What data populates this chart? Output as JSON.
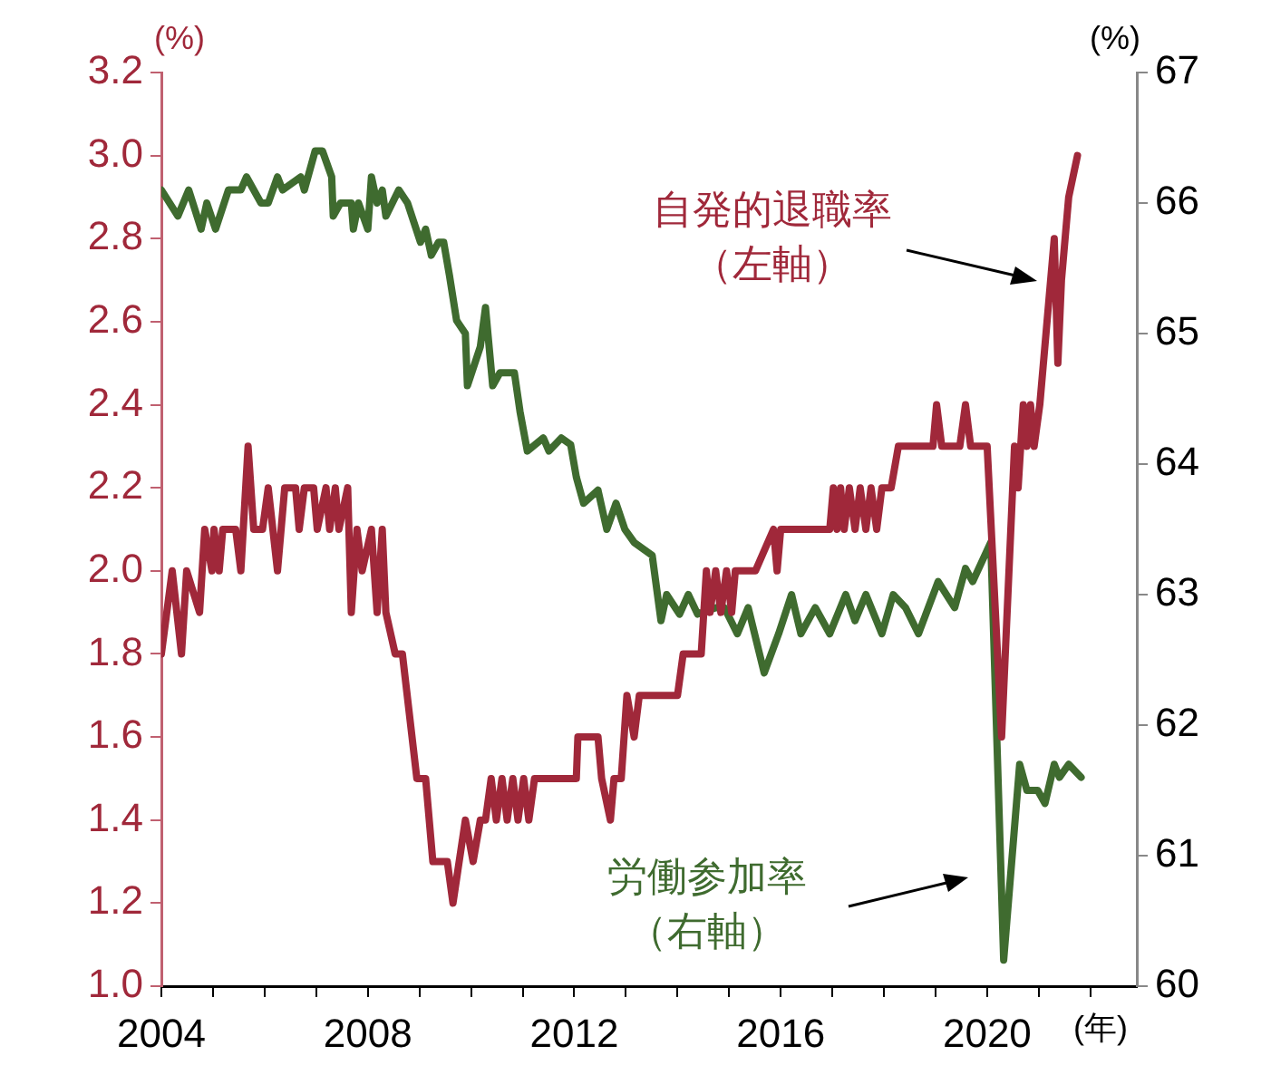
{
  "chart_data": {
    "type": "line",
    "xlabel": "(年)",
    "ylabel": "(%)",
    "y2label": "(%)",
    "xlim": [
      2004,
      2022.9
    ],
    "xticks": [
      2004,
      {
        "value": 2005,
        "label": null
      },
      {
        "value": 2006,
        "label": null
      },
      {
        "value": 2007,
        "label": null
      },
      2008,
      {
        "value": 2009,
        "label": null
      },
      {
        "value": 2010,
        "label": null
      },
      {
        "value": 2011,
        "label": null
      },
      2012,
      {
        "value": 2013,
        "label": null
      },
      {
        "value": 2014,
        "label": null
      },
      {
        "value": 2015,
        "label": null
      },
      2016,
      {
        "value": 2017,
        "label": null
      },
      {
        "value": 2018,
        "label": null
      },
      {
        "value": 2019,
        "label": null
      },
      2020,
      {
        "value": 2021,
        "label": null
      },
      {
        "value": 2022,
        "label": null
      }
    ],
    "ylim": [
      1.0,
      3.2
    ],
    "yticks": [
      {
        "value": 1,
        "label": "1.0"
      },
      1.2,
      1.4,
      1.6,
      1.8,
      {
        "value": 2,
        "label": "2.0"
      },
      2.2,
      2.4,
      2.6,
      2.8,
      {
        "value": 3,
        "label": "3.0"
      },
      3.2
    ],
    "y2lim": [
      60,
      67
    ],
    "y2ticks": [
      60,
      61,
      62,
      63,
      64,
      65,
      66,
      67
    ],
    "grid": false,
    "legend": false,
    "marker": "none",
    "line_style": "solid",
    "series": [
      {
        "name": "自発的退職率（左軸）",
        "color": "#a0283a",
        "axis": "y",
        "x": [
          2004.0,
          2004.21,
          2004.39,
          2004.49,
          2004.74,
          2004.84,
          2004.98,
          2005.02,
          2005.12,
          2005.19,
          2005.44,
          2005.54,
          2005.68,
          2005.79,
          2005.96,
          2006.07,
          2006.25,
          2006.39,
          2006.6,
          2006.67,
          2006.77,
          2006.95,
          2007.02,
          2007.19,
          2007.26,
          2007.37,
          2007.44,
          2007.61,
          2007.68,
          2007.79,
          2007.89,
          2008.07,
          2008.18,
          2008.28,
          2008.35,
          2008.53,
          2008.67,
          2008.95,
          2009.12,
          2009.26,
          2009.54,
          2009.65,
          2009.89,
          2010.04,
          2010.18,
          2010.28,
          2010.39,
          2010.49,
          2010.6,
          2010.7,
          2010.81,
          2010.91,
          2011.02,
          2011.12,
          2011.23,
          2012.04,
          2012.07,
          2012.46,
          2012.53,
          2012.7,
          2012.77,
          2012.91,
          2013.02,
          2013.16,
          2013.26,
          2014.0,
          2014.11,
          2014.46,
          2014.56,
          2014.63,
          2014.74,
          2014.84,
          2014.95,
          2015.05,
          2015.12,
          2015.51,
          2015.86,
          2015.93,
          2016.0,
          2016.95,
          2017.02,
          2017.09,
          2017.16,
          2017.23,
          2017.33,
          2017.44,
          2017.54,
          2017.65,
          2017.75,
          2017.86,
          2017.96,
          2018.14,
          2018.28,
          2018.95,
          2019.02,
          2019.12,
          2019.47,
          2019.58,
          2019.68,
          2020.0,
          2020.28,
          2020.53,
          2020.6,
          2020.7,
          2020.77,
          2020.84,
          2020.91,
          2021.02,
          2021.16,
          2021.3,
          2021.37,
          2021.44,
          2021.58,
          2021.75
        ],
        "values": [
          1.8,
          2.0,
          1.8,
          2.0,
          1.9,
          2.1,
          2.0,
          2.1,
          2.0,
          2.1,
          2.1,
          2.0,
          2.3,
          2.1,
          2.1,
          2.2,
          2.0,
          2.2,
          2.2,
          2.1,
          2.2,
          2.2,
          2.1,
          2.2,
          2.1,
          2.2,
          2.1,
          2.2,
          1.9,
          2.1,
          2.0,
          2.1,
          1.9,
          2.1,
          1.9,
          1.8,
          1.8,
          1.5,
          1.5,
          1.3,
          1.3,
          1.2,
          1.4,
          1.3,
          1.4,
          1.4,
          1.5,
          1.4,
          1.5,
          1.4,
          1.5,
          1.4,
          1.5,
          1.4,
          1.5,
          1.5,
          1.6,
          1.6,
          1.5,
          1.4,
          1.5,
          1.5,
          1.7,
          1.6,
          1.7,
          1.7,
          1.8,
          1.8,
          2.0,
          1.9,
          2.0,
          1.9,
          2.0,
          1.9,
          2.0,
          2.0,
          2.1,
          2.0,
          2.1,
          2.1,
          2.2,
          2.1,
          2.2,
          2.1,
          2.2,
          2.1,
          2.2,
          2.1,
          2.2,
          2.1,
          2.2,
          2.2,
          2.3,
          2.3,
          2.4,
          2.3,
          2.3,
          2.4,
          2.3,
          2.3,
          1.6,
          2.3,
          2.2,
          2.4,
          2.3,
          2.4,
          2.3,
          2.4,
          2.6,
          2.8,
          2.5,
          2.7,
          2.9,
          3.0
        ]
      },
      {
        "name": "労働参加率（右軸）",
        "color": "#3f6b2f",
        "axis": "y2",
        "x": [
          2004.0,
          2004.32,
          2004.53,
          2004.77,
          2004.88,
          2005.05,
          2005.3,
          2005.54,
          2005.65,
          2005.93,
          2006.07,
          2006.25,
          2006.35,
          2006.7,
          2006.77,
          2006.98,
          2007.12,
          2007.3,
          2007.33,
          2007.47,
          2007.68,
          2007.72,
          2007.82,
          2008.0,
          2008.07,
          2008.18,
          2008.28,
          2008.35,
          2008.6,
          2008.77,
          2009.02,
          2009.12,
          2009.23,
          2009.37,
          2009.47,
          2009.58,
          2009.72,
          2009.89,
          2009.93,
          2010.18,
          2010.28,
          2010.42,
          2010.56,
          2010.84,
          2010.95,
          2011.09,
          2011.4,
          2011.51,
          2011.75,
          2011.93,
          2012.04,
          2012.18,
          2012.46,
          2012.63,
          2012.81,
          2012.98,
          2013.16,
          2013.51,
          2013.68,
          2013.79,
          2014.04,
          2014.21,
          2014.39,
          2014.74,
          2014.91,
          2015.16,
          2015.37,
          2015.68,
          2015.96,
          2016.21,
          2016.39,
          2016.67,
          2016.95,
          2017.26,
          2017.44,
          2017.65,
          2017.96,
          2018.18,
          2018.42,
          2018.67,
          2019.05,
          2019.37,
          2019.58,
          2019.72,
          2020.07,
          2020.32,
          2020.63,
          2020.77,
          2020.98,
          2021.12,
          2021.3,
          2021.4,
          2021.58,
          2021.82
        ],
        "values": [
          66.1,
          65.9,
          66.1,
          65.8,
          66.0,
          65.8,
          66.1,
          66.1,
          66.2,
          66.0,
          66.0,
          66.2,
          66.1,
          66.2,
          66.1,
          66.4,
          66.4,
          66.2,
          65.9,
          66.0,
          66.0,
          65.8,
          66.0,
          65.8,
          66.2,
          66.0,
          66.1,
          65.9,
          66.1,
          66.0,
          65.7,
          65.8,
          65.6,
          65.7,
          65.7,
          65.45,
          65.1,
          65.0,
          64.6,
          64.9,
          65.2,
          64.6,
          64.7,
          64.7,
          64.4,
          64.1,
          64.2,
          64.1,
          64.2,
          64.15,
          63.9,
          63.7,
          63.8,
          63.5,
          63.7,
          63.5,
          63.4,
          63.3,
          62.8,
          63.0,
          62.85,
          63.0,
          62.85,
          62.9,
          62.9,
          62.7,
          62.9,
          62.4,
          62.7,
          63.0,
          62.7,
          62.9,
          62.7,
          63.0,
          62.8,
          63.0,
          62.7,
          63.0,
          62.9,
          62.7,
          63.1,
          62.9,
          63.2,
          63.1,
          63.4,
          60.2,
          61.7,
          61.5,
          61.5,
          61.4,
          61.7,
          61.6,
          61.7,
          61.6
        ]
      }
    ]
  }
}
